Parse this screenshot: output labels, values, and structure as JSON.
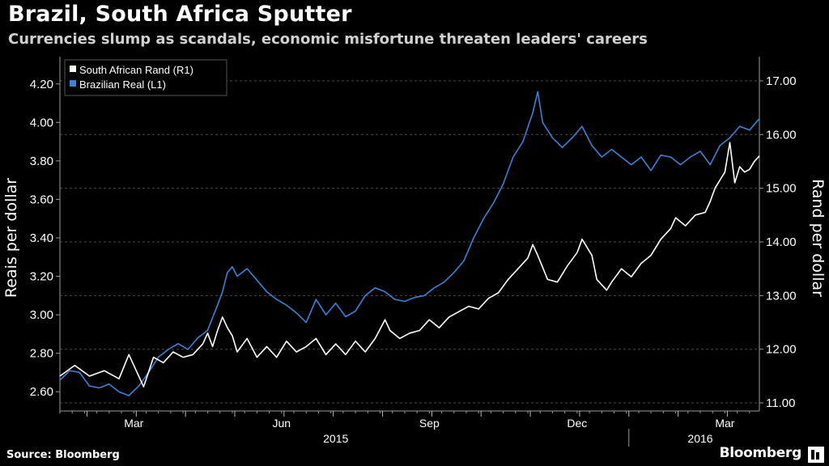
{
  "header": {
    "title": "Brazil, South Africa Sputter",
    "subtitle": "Currencies slump as scandals, economic misfortune threaten leaders' careers"
  },
  "footer": {
    "source": "Source: Bloomberg",
    "brand": "Bloomberg"
  },
  "chart_data": {
    "type": "line",
    "title": "Brazil, South Africa Sputter",
    "subtitle": "Currencies slump as scandals, economic misfortune threaten leaders' careers",
    "ylabel_left": "Reais per dollar",
    "ylabel_right": "Rand per dollar",
    "ylim_left": [
      2.5,
      4.3
    ],
    "ylim_right": [
      10.85,
      17.3
    ],
    "yticks_left": [
      "4.20",
      "4.00",
      "3.80",
      "3.60",
      "3.40",
      "3.20",
      "3.00",
      "2.80",
      "2.60"
    ],
    "yticks_right": [
      "17.00",
      "16.00",
      "15.00",
      "14.00",
      "13.00",
      "12.00",
      "11.00"
    ],
    "xticks_months": [
      "Mar",
      "Jun",
      "Sep",
      "Dec",
      "Mar"
    ],
    "xticks_years": [
      "2015",
      "2016"
    ],
    "x_unit": "months since 2015-01-15",
    "xlim": [
      0,
      14.2
    ],
    "grid": true,
    "legend_position": "top-left",
    "colors": {
      "background": "#000000",
      "grid": "#4a4a4a",
      "real": "#3a82d6",
      "rand": "#ffffff"
    },
    "series": [
      {
        "name": "South African Rand (R1)",
        "axis": "right",
        "points": [
          [
            0,
            11.5
          ],
          [
            0.3,
            11.7
          ],
          [
            0.6,
            11.5
          ],
          [
            0.9,
            11.6
          ],
          [
            1.2,
            11.45
          ],
          [
            1.4,
            11.9
          ],
          [
            1.5,
            11.7
          ],
          [
            1.7,
            11.3
          ],
          [
            1.9,
            11.85
          ],
          [
            2.1,
            11.75
          ],
          [
            2.3,
            11.95
          ],
          [
            2.5,
            11.85
          ],
          [
            2.7,
            11.9
          ],
          [
            2.9,
            12.1
          ],
          [
            3.0,
            12.3
          ],
          [
            3.1,
            12.05
          ],
          [
            3.2,
            12.35
          ],
          [
            3.3,
            12.6
          ],
          [
            3.4,
            12.4
          ],
          [
            3.5,
            12.25
          ],
          [
            3.6,
            11.95
          ],
          [
            3.8,
            12.2
          ],
          [
            4.0,
            11.85
          ],
          [
            4.2,
            12.05
          ],
          [
            4.4,
            11.85
          ],
          [
            4.6,
            12.15
          ],
          [
            4.8,
            11.95
          ],
          [
            5.0,
            12.05
          ],
          [
            5.2,
            12.2
          ],
          [
            5.4,
            11.9
          ],
          [
            5.6,
            12.1
          ],
          [
            5.8,
            11.9
          ],
          [
            6.0,
            12.15
          ],
          [
            6.2,
            11.95
          ],
          [
            6.4,
            12.2
          ],
          [
            6.6,
            12.55
          ],
          [
            6.7,
            12.35
          ],
          [
            6.9,
            12.2
          ],
          [
            7.1,
            12.3
          ],
          [
            7.3,
            12.35
          ],
          [
            7.5,
            12.55
          ],
          [
            7.7,
            12.4
          ],
          [
            7.9,
            12.6
          ],
          [
            8.1,
            12.7
          ],
          [
            8.3,
            12.8
          ],
          [
            8.5,
            12.75
          ],
          [
            8.7,
            12.95
          ],
          [
            8.9,
            13.05
          ],
          [
            9.1,
            13.3
          ],
          [
            9.3,
            13.5
          ],
          [
            9.5,
            13.7
          ],
          [
            9.6,
            13.95
          ],
          [
            9.7,
            13.75
          ],
          [
            9.9,
            13.3
          ],
          [
            10.1,
            13.25
          ],
          [
            10.3,
            13.55
          ],
          [
            10.5,
            13.8
          ],
          [
            10.6,
            14.05
          ],
          [
            10.8,
            13.75
          ],
          [
            10.9,
            13.3
          ],
          [
            11.1,
            13.1
          ],
          [
            11.2,
            13.25
          ],
          [
            11.4,
            13.5
          ],
          [
            11.6,
            13.35
          ],
          [
            11.8,
            13.6
          ],
          [
            12.0,
            13.75
          ],
          [
            12.2,
            14.05
          ],
          [
            12.4,
            14.25
          ],
          [
            12.5,
            14.45
          ],
          [
            12.7,
            14.3
          ],
          [
            12.9,
            14.5
          ],
          [
            13.1,
            14.55
          ],
          [
            13.2,
            14.75
          ],
          [
            13.3,
            15.0
          ],
          [
            13.5,
            15.3
          ],
          [
            13.6,
            15.85
          ],
          [
            13.7,
            15.1
          ],
          [
            13.8,
            15.4
          ],
          [
            13.9,
            15.3
          ],
          [
            14.0,
            15.35
          ],
          [
            14.1,
            15.5
          ],
          [
            14.2,
            15.6
          ]
        ]
      },
      {
        "name": "Brazilian Real (L1)",
        "axis": "left",
        "points": [
          [
            0,
            2.66
          ],
          [
            0.2,
            2.71
          ],
          [
            0.4,
            2.7
          ],
          [
            0.6,
            2.63
          ],
          [
            0.8,
            2.62
          ],
          [
            1.0,
            2.64
          ],
          [
            1.2,
            2.6
          ],
          [
            1.4,
            2.58
          ],
          [
            1.6,
            2.63
          ],
          [
            1.8,
            2.7
          ],
          [
            2.0,
            2.78
          ],
          [
            2.2,
            2.82
          ],
          [
            2.4,
            2.85
          ],
          [
            2.6,
            2.82
          ],
          [
            2.8,
            2.88
          ],
          [
            3.0,
            2.92
          ],
          [
            3.2,
            3.05
          ],
          [
            3.3,
            3.12
          ],
          [
            3.4,
            3.22
          ],
          [
            3.5,
            3.25
          ],
          [
            3.6,
            3.2
          ],
          [
            3.8,
            3.24
          ],
          [
            4.0,
            3.18
          ],
          [
            4.2,
            3.12
          ],
          [
            4.4,
            3.08
          ],
          [
            4.6,
            3.05
          ],
          [
            4.8,
            3.01
          ],
          [
            5.0,
            2.96
          ],
          [
            5.2,
            3.08
          ],
          [
            5.4,
            3.0
          ],
          [
            5.6,
            3.06
          ],
          [
            5.8,
            2.99
          ],
          [
            6.0,
            3.02
          ],
          [
            6.2,
            3.1
          ],
          [
            6.4,
            3.14
          ],
          [
            6.6,
            3.12
          ],
          [
            6.8,
            3.08
          ],
          [
            7.0,
            3.07
          ],
          [
            7.2,
            3.09
          ],
          [
            7.4,
            3.1
          ],
          [
            7.6,
            3.14
          ],
          [
            7.8,
            3.17
          ],
          [
            8.0,
            3.22
          ],
          [
            8.2,
            3.28
          ],
          [
            8.4,
            3.4
          ],
          [
            8.6,
            3.5
          ],
          [
            8.8,
            3.58
          ],
          [
            9.0,
            3.68
          ],
          [
            9.2,
            3.82
          ],
          [
            9.4,
            3.9
          ],
          [
            9.6,
            4.05
          ],
          [
            9.7,
            4.16
          ],
          [
            9.8,
            4.0
          ],
          [
            10.0,
            3.92
          ],
          [
            10.2,
            3.87
          ],
          [
            10.4,
            3.92
          ],
          [
            10.6,
            3.98
          ],
          [
            10.8,
            3.88
          ],
          [
            11.0,
            3.82
          ],
          [
            11.2,
            3.86
          ],
          [
            11.4,
            3.82
          ],
          [
            11.6,
            3.78
          ],
          [
            11.8,
            3.82
          ],
          [
            12.0,
            3.75
          ],
          [
            12.2,
            3.83
          ],
          [
            12.4,
            3.82
          ],
          [
            12.6,
            3.78
          ],
          [
            12.8,
            3.82
          ],
          [
            13.0,
            3.85
          ],
          [
            13.2,
            3.78
          ],
          [
            13.4,
            3.88
          ],
          [
            13.6,
            3.92
          ],
          [
            13.8,
            3.98
          ],
          [
            14.0,
            3.96
          ],
          [
            14.2,
            4.02
          ]
        ]
      }
    ]
  }
}
